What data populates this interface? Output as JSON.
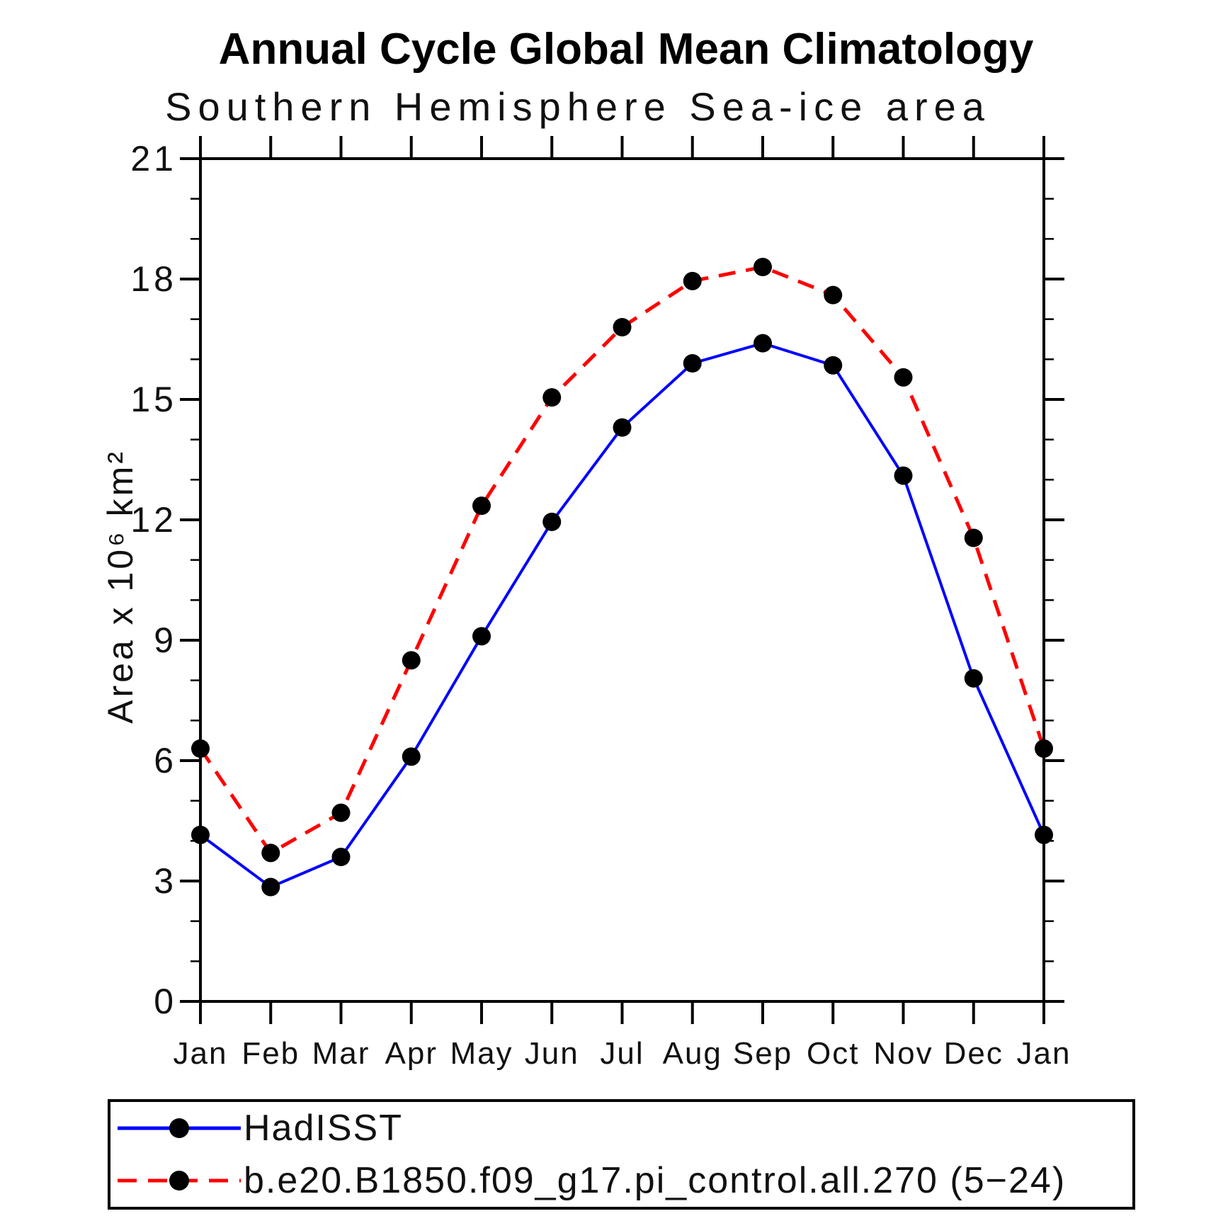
{
  "chart_data": {
    "type": "line",
    "title": "Annual Cycle Global Mean Climatology",
    "subtitle": "Southern Hemisphere Sea-ice area",
    "ylabel": "Area x 10⁶ km²",
    "xlabel": "",
    "categories": [
      "Jan",
      "Feb",
      "Mar",
      "Apr",
      "May",
      "Jun",
      "Jul",
      "Aug",
      "Sep",
      "Oct",
      "Nov",
      "Dec",
      "Jan"
    ],
    "ylim": [
      0,
      21
    ],
    "yticks_major": [
      0,
      3,
      6,
      9,
      12,
      15,
      18,
      21
    ],
    "yticks_minor_step": 1,
    "grid": "off",
    "legend_position": "bottom-left-box",
    "axis_color": "#000000",
    "text_color": "#000000",
    "marker_color": "#000000",
    "series": [
      {
        "name": "HadISST",
        "color": "#0000ff",
        "line_style": "solid",
        "marker": "filled-circle",
        "values": [
          4.15,
          2.85,
          3.6,
          6.1,
          9.1,
          11.95,
          14.3,
          15.9,
          16.4,
          15.85,
          13.1,
          8.05,
          4.15
        ]
      },
      {
        "name": "b.e20.B1850.f09_g17.pi_control.all.270 (5−24)",
        "color": "#ff0000",
        "line_style": "dashed",
        "marker": "filled-circle",
        "values": [
          6.3,
          3.7,
          4.7,
          8.5,
          12.35,
          15.05,
          16.8,
          17.95,
          18.3,
          17.6,
          15.55,
          11.55,
          6.3
        ]
      }
    ]
  }
}
